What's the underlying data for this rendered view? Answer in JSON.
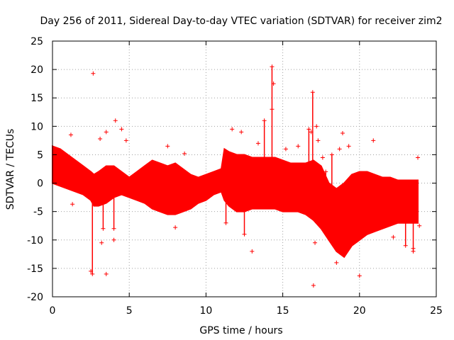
{
  "chart_data": {
    "type": "scatter",
    "title": "Day 256 of 2011, Sidereal Day-to-day VTEC variation (SDTVAR) for receiver zim2",
    "xlabel": "GPS time / hours",
    "ylabel": "SDTVAR / TECUs",
    "xlim": [
      0,
      25
    ],
    "ylim": [
      -20,
      25
    ],
    "x_ticks": [
      0,
      5,
      10,
      15,
      20,
      25
    ],
    "x_tick_labels": [
      "0",
      "5",
      "10",
      "15",
      "20",
      "25"
    ],
    "y_ticks": [
      -20,
      -15,
      -10,
      -5,
      0,
      5,
      10,
      15,
      20,
      25
    ],
    "y_tick_labels": [
      "-20",
      "-15",
      "-10",
      "-5",
      "0",
      "5",
      "10",
      "15",
      "20",
      "25"
    ],
    "grid": true,
    "marker": "+",
    "color": "#ff0000",
    "band_envelope": {
      "name": "dense SDTVAR band",
      "x": [
        0,
        0.5,
        1,
        1.5,
        2,
        2.5,
        2.7,
        3,
        3.5,
        4,
        4.5,
        5,
        5.5,
        6,
        6.5,
        7,
        7.5,
        8,
        8.5,
        9,
        9.5,
        10,
        10.5,
        11,
        11.2,
        11.5,
        12,
        12.5,
        13,
        13.5,
        14,
        14.5,
        15,
        15.5,
        16,
        16.5,
        17,
        17.5,
        18,
        18.5,
        19,
        19.5,
        20,
        20.5,
        21,
        21.5,
        22,
        22.5,
        23,
        23.5,
        23.8
      ],
      "upper": [
        6.5,
        6,
        5,
        4,
        3,
        2,
        1.5,
        2,
        3,
        3,
        2,
        1,
        2,
        3,
        4,
        3.5,
        3,
        3.5,
        2.5,
        1.5,
        1,
        1.5,
        2,
        2.5,
        6,
        5.5,
        5,
        5,
        4.5,
        4.5,
        4.5,
        4.5,
        4,
        3.5,
        3.5,
        3.5,
        4,
        3,
        0,
        -1,
        0,
        1.5,
        2,
        2,
        1.5,
        1,
        1,
        0.5,
        0.5,
        0.5,
        0.5
      ],
      "lower": [
        0,
        -0.5,
        -1,
        -1.5,
        -2,
        -3,
        -4,
        -4,
        -3.5,
        -2.5,
        -2,
        -2.5,
        -3,
        -3.5,
        -4.5,
        -5,
        -5.5,
        -5.5,
        -5,
        -4.5,
        -3.5,
        -3,
        -2,
        -1.5,
        -3,
        -4,
        -5,
        -5,
        -4.5,
        -4.5,
        -4.5,
        -4.5,
        -5,
        -5,
        -5,
        -5.5,
        -6.5,
        -8,
        -10,
        -12,
        -13,
        -11,
        -10,
        -9,
        -8.5,
        -8,
        -7.5,
        -7,
        -7,
        -7,
        -7
      ]
    },
    "spikes": [
      {
        "x": 2.6,
        "from": 0,
        "to": -16
      },
      {
        "x": 11.3,
        "from": 2,
        "to": -7
      },
      {
        "x": 12.5,
        "from": 3,
        "to": -9
      },
      {
        "x": 13.8,
        "from": 3,
        "to": 11
      },
      {
        "x": 14.3,
        "from": 3,
        "to": 20.5
      },
      {
        "x": 16.7,
        "from": 3,
        "to": 9.5
      },
      {
        "x": 16.95,
        "from": 3,
        "to": 16
      },
      {
        "x": 17.8,
        "from": -8,
        "to": 2
      },
      {
        "x": 18.2,
        "from": -9,
        "to": 5
      },
      {
        "x": 19.2,
        "from": -11,
        "to": -7
      },
      {
        "x": 23.0,
        "from": -7,
        "to": -11
      },
      {
        "x": 23.5,
        "from": -7,
        "to": -12
      },
      {
        "x": 4.0,
        "from": 2,
        "to": -8
      },
      {
        "x": 3.3,
        "from": -3,
        "to": -8
      }
    ],
    "outliers": [
      {
        "x": 2.65,
        "y": 19.3
      },
      {
        "x": 1.2,
        "y": 8.5
      },
      {
        "x": 4.1,
        "y": 11
      },
      {
        "x": 3.5,
        "y": 9
      },
      {
        "x": 4.5,
        "y": 9.5
      },
      {
        "x": 3.1,
        "y": 7.8
      },
      {
        "x": 4.8,
        "y": 7.5
      },
      {
        "x": 7.5,
        "y": 6.5
      },
      {
        "x": 8.6,
        "y": 5.2
      },
      {
        "x": 11.7,
        "y": 9.5
      },
      {
        "x": 12.3,
        "y": 9
      },
      {
        "x": 13.4,
        "y": 7
      },
      {
        "x": 14.4,
        "y": 17.5
      },
      {
        "x": 14.3,
        "y": 13
      },
      {
        "x": 15.2,
        "y": 6
      },
      {
        "x": 16.0,
        "y": 6.5
      },
      {
        "x": 16.85,
        "y": 9
      },
      {
        "x": 17.2,
        "y": 10
      },
      {
        "x": 17.3,
        "y": 7.5
      },
      {
        "x": 17.6,
        "y": 4.5
      },
      {
        "x": 18.7,
        "y": 6
      },
      {
        "x": 18.9,
        "y": 8.8
      },
      {
        "x": 19.3,
        "y": 6.5
      },
      {
        "x": 20.9,
        "y": 7.5
      },
      {
        "x": 23.8,
        "y": 4.5
      },
      {
        "x": 1.3,
        "y": -3.7
      },
      {
        "x": 2.5,
        "y": -15.5
      },
      {
        "x": 3.5,
        "y": -16
      },
      {
        "x": 3.2,
        "y": -10.5
      },
      {
        "x": 4.0,
        "y": -10
      },
      {
        "x": 8.0,
        "y": -7.8
      },
      {
        "x": 13.0,
        "y": -12
      },
      {
        "x": 17.0,
        "y": -18
      },
      {
        "x": 17.1,
        "y": -10.5
      },
      {
        "x": 18.5,
        "y": -14
      },
      {
        "x": 20.0,
        "y": -16.3
      },
      {
        "x": 19.0,
        "y": -12
      },
      {
        "x": 23.5,
        "y": -11.5
      },
      {
        "x": 22.2,
        "y": -9.5
      },
      {
        "x": 23.9,
        "y": -7.5
      }
    ]
  }
}
